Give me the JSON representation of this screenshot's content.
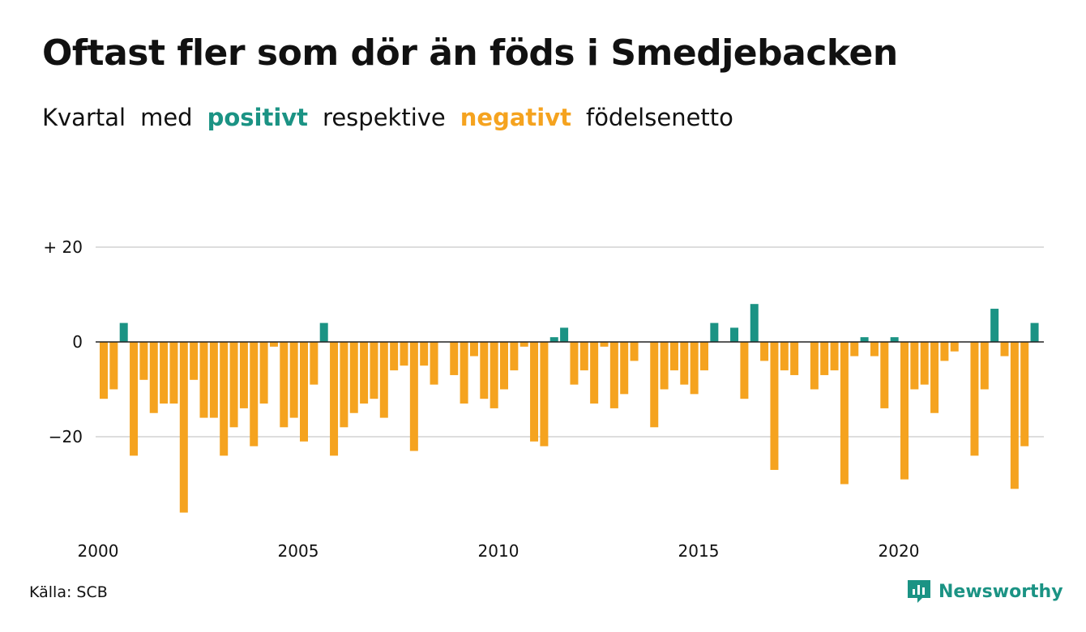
{
  "title": "Oftast fler som dör än föds i Smedjebacken",
  "subtitle": {
    "w1": "Kvartal",
    "w2": "med",
    "pos_word": "positivt",
    "w3": "respektive",
    "neg_word": "negativt",
    "w4": "födelsenetto"
  },
  "source": "Källa: SCB",
  "logo_text": "Newsworthy",
  "logo_icon": "newsworthy-logo-icon",
  "colors": {
    "positive": "#1b9384",
    "negative": "#f5a31f",
    "grid": "#dddddd",
    "zero_line": "#222222"
  },
  "chart_data": {
    "type": "bar",
    "x_start": "2000 Q1",
    "frequency": "quarterly",
    "x_tick_labels": [
      "2000",
      "2005",
      "2010",
      "2015",
      "2020"
    ],
    "y_tick_labels": [
      "+ 20",
      "0",
      "−20"
    ],
    "y_ticks": [
      20,
      0,
      -20
    ],
    "ylim": [
      -38,
      22
    ],
    "grid": true,
    "values": [
      -12,
      -10,
      4,
      -24,
      -8,
      -15,
      -13,
      -13,
      -36,
      -8,
      -16,
      -16,
      -24,
      -18,
      -14,
      -22,
      -13,
      -1,
      -18,
      -16,
      -21,
      -9,
      4,
      -24,
      -18,
      -15,
      -13,
      -12,
      -16,
      -6,
      -5,
      -23,
      -5,
      -9,
      0,
      -7,
      -13,
      -3,
      -12,
      -14,
      -10,
      -6,
      -1,
      -21,
      -22,
      1,
      3,
      -9,
      -6,
      -13,
      -1,
      -14,
      -11,
      -4,
      0,
      -18,
      -10,
      -6,
      -9,
      -11,
      -6,
      4,
      0,
      3,
      -12,
      8,
      -4,
      -27,
      -6,
      -7,
      0,
      -10,
      -7,
      -6,
      -30,
      -3,
      1,
      -3,
      -14,
      1,
      -29,
      -10,
      -9,
      -15,
      -4,
      -2,
      0,
      -24,
      -10,
      7,
      -3,
      -31,
      -22,
      4
    ]
  }
}
